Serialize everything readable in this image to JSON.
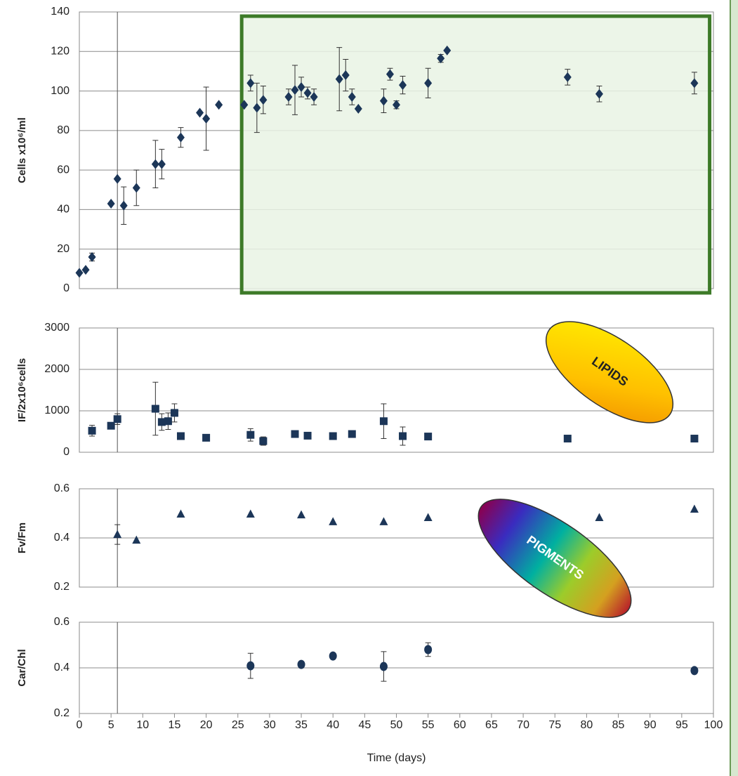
{
  "chart_data": [
    {
      "type": "scatter",
      "y_label": "Cells x10⁶/ml",
      "xlim": [
        0,
        100
      ],
      "ylim": [
        0,
        140
      ],
      "yticks": [
        0,
        20,
        40,
        60,
        80,
        100,
        120,
        140
      ],
      "grid": true,
      "reference_x": 6,
      "highlight_x": [
        25.6,
        99.4
      ],
      "highlight_color": "#3d7a28",
      "x": [
        0,
        1,
        2,
        5,
        6,
        7,
        9,
        12,
        13,
        16,
        19,
        20,
        22,
        26,
        27,
        28,
        29,
        33,
        34,
        35,
        36,
        37,
        41,
        42,
        43,
        44,
        48,
        49,
        50,
        51,
        55,
        57,
        58,
        77,
        82,
        97
      ],
      "series": [
        {
          "color": "#1c3658",
          "marker": "diamond",
          "values": [
            8,
            9.5,
            16,
            43,
            55.5,
            42,
            51,
            63,
            63,
            76.5,
            89,
            86,
            93,
            93,
            104,
            91.5,
            95.5,
            97,
            100.5,
            102,
            99,
            97,
            106,
            108,
            97,
            91,
            95,
            108.5,
            93,
            103,
            104,
            116.5,
            120.5,
            107,
            98.5,
            104
          ],
          "errors": [
            null,
            null,
            2,
            null,
            null,
            9.5,
            9,
            12,
            7.5,
            5,
            null,
            16,
            null,
            null,
            4,
            12.5,
            7,
            4,
            12.5,
            5,
            3,
            4,
            16,
            8,
            4,
            null,
            6,
            3,
            2,
            4.5,
            7.5,
            2,
            null,
            4,
            4,
            5.5
          ]
        }
      ]
    },
    {
      "type": "scatter",
      "y_label": "IF/2x10⁶cells",
      "xlim": [
        0,
        100
      ],
      "ylim": [
        0,
        3000
      ],
      "yticks": [
        0,
        1000,
        2000,
        3000
      ],
      "grid": true,
      "reference_x": 6,
      "annotation": "LIPIDS",
      "x": [
        2,
        5,
        6,
        12,
        13,
        14,
        15,
        16,
        20,
        27,
        29,
        34,
        36,
        40,
        43,
        48,
        51,
        55,
        77,
        97
      ],
      "series": [
        {
          "color": "#1c3658",
          "marker": "square",
          "values": [
            520,
            640,
            800,
            1050,
            730,
            750,
            950,
            390,
            350,
            420,
            270,
            440,
            400,
            390,
            440,
            750,
            390,
            380,
            330,
            330
          ],
          "errors": [
            130,
            null,
            130,
            640,
            200,
            200,
            220,
            null,
            null,
            150,
            100,
            null,
            null,
            null,
            null,
            420,
            220,
            null,
            null,
            null
          ]
        }
      ]
    },
    {
      "type": "scatter",
      "y_label": "Fv/Fm",
      "xlim": [
        0,
        100
      ],
      "ylim": [
        0.2,
        0.6
      ],
      "yticks": [
        0.2,
        0.4,
        0.6
      ],
      "grid": true,
      "reference_x": 6,
      "x": [
        6,
        9,
        16,
        27,
        35,
        40,
        48,
        55,
        82,
        97
      ],
      "series": [
        {
          "color": "#1c3658",
          "marker": "triangle",
          "values": [
            0.414,
            0.391,
            0.497,
            0.497,
            0.494,
            0.466,
            0.466,
            0.483,
            0.483,
            0.517
          ],
          "errors": [
            0.04,
            null,
            null,
            null,
            null,
            null,
            null,
            null,
            null,
            null
          ]
        }
      ]
    },
    {
      "type": "scatter",
      "y_label": "Car/Chl",
      "x_label": "Time (days)",
      "xlim": [
        0,
        100
      ],
      "xticks": [
        0,
        5,
        10,
        15,
        20,
        25,
        30,
        35,
        40,
        45,
        50,
        55,
        60,
        65,
        70,
        75,
        80,
        85,
        90,
        95,
        100
      ],
      "ylim": [
        0.2,
        0.6
      ],
      "yticks": [
        0.2,
        0.4,
        0.6
      ],
      "grid": true,
      "reference_x": 6,
      "annotation": "PIGMENTS",
      "x": [
        27,
        35,
        40,
        48,
        55,
        97
      ],
      "series": [
        {
          "color": "#1c3658",
          "marker": "circle",
          "values": [
            0.409,
            0.415,
            0.452,
            0.406,
            0.48,
            0.388
          ],
          "errors": [
            0.055,
            null,
            null,
            0.065,
            0.03,
            null
          ]
        }
      ]
    }
  ]
}
